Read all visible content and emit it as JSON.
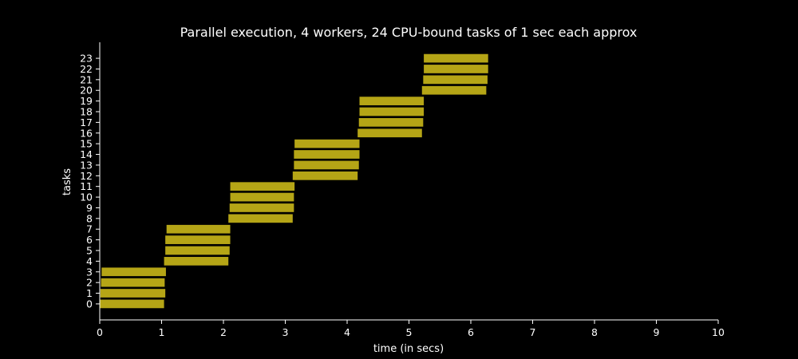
{
  "chart_data": {
    "type": "bar",
    "orientation": "horizontal-gantt",
    "title": "Parallel execution, 4 workers, 24 CPU-bound tasks of 1 sec each approx",
    "xlabel": "time (in secs)",
    "ylabel": "tasks",
    "xlim": [
      0,
      10
    ],
    "x_ticks": [
      0,
      1,
      2,
      3,
      4,
      5,
      6,
      7,
      8,
      9,
      10
    ],
    "ylim": [
      -1.5,
      24.5
    ],
    "grid": false,
    "bar_color": "#b5a516",
    "background": "#000000",
    "axis_color": "#ffffff",
    "categories": [
      "0",
      "1",
      "2",
      "3",
      "4",
      "5",
      "6",
      "7",
      "8",
      "9",
      "10",
      "11",
      "12",
      "13",
      "14",
      "15",
      "16",
      "17",
      "18",
      "19",
      "20",
      "21",
      "22",
      "23"
    ],
    "tasks": [
      {
        "task": 0,
        "start": 0.0,
        "end": 1.04
      },
      {
        "task": 1,
        "start": 0.01,
        "end": 1.06
      },
      {
        "task": 2,
        "start": 0.02,
        "end": 1.05
      },
      {
        "task": 3,
        "start": 0.03,
        "end": 1.07
      },
      {
        "task": 4,
        "start": 1.04,
        "end": 2.08
      },
      {
        "task": 5,
        "start": 1.06,
        "end": 2.1
      },
      {
        "task": 6,
        "start": 1.06,
        "end": 2.11
      },
      {
        "task": 7,
        "start": 1.08,
        "end": 2.11
      },
      {
        "task": 8,
        "start": 2.08,
        "end": 3.12
      },
      {
        "task": 9,
        "start": 2.1,
        "end": 3.14
      },
      {
        "task": 10,
        "start": 2.11,
        "end": 3.14
      },
      {
        "task": 11,
        "start": 2.11,
        "end": 3.15
      },
      {
        "task": 12,
        "start": 3.12,
        "end": 4.17
      },
      {
        "task": 13,
        "start": 3.14,
        "end": 4.19
      },
      {
        "task": 14,
        "start": 3.14,
        "end": 4.2
      },
      {
        "task": 15,
        "start": 3.15,
        "end": 4.2
      },
      {
        "task": 16,
        "start": 4.17,
        "end": 5.21
      },
      {
        "task": 17,
        "start": 4.19,
        "end": 5.23
      },
      {
        "task": 18,
        "start": 4.2,
        "end": 5.24
      },
      {
        "task": 19,
        "start": 4.2,
        "end": 5.24
      },
      {
        "task": 20,
        "start": 5.21,
        "end": 6.25
      },
      {
        "task": 21,
        "start": 5.23,
        "end": 6.27
      },
      {
        "task": 22,
        "start": 5.24,
        "end": 6.28
      },
      {
        "task": 23,
        "start": 5.24,
        "end": 6.28
      }
    ]
  }
}
